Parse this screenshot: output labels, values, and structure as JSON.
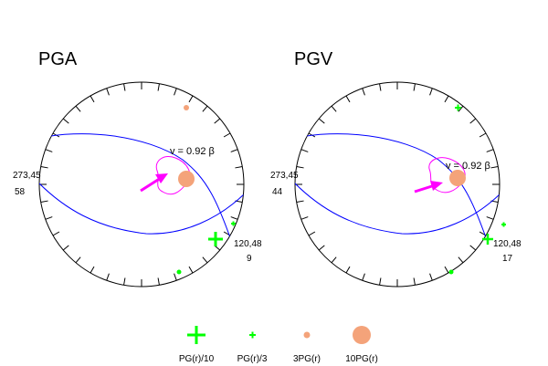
{
  "colors": {
    "circle": "#000000",
    "great_circle": "#0000ff",
    "contour": "#ff00ff",
    "arrow": "#ff00ff",
    "cross": "#00ff00",
    "dot": "#f4a37a"
  },
  "legend": [
    {
      "symbol": "big-cross",
      "label": "PG(r)/10"
    },
    {
      "symbol": "small-cross",
      "label": "PG(r)/3"
    },
    {
      "symbol": "small-dot",
      "label": "3PG(r)"
    },
    {
      "symbol": "big-dot",
      "label": "10PG(r)"
    }
  ],
  "panels": [
    {
      "title": "PGA",
      "left_label_top": "273,45",
      "left_label_bottom": "58",
      "right_label_top": "120,48",
      "right_label_bottom": "9",
      "velocity_label": "v = 0.92 β"
    },
    {
      "title": "PGV",
      "left_label_top": "273,45",
      "left_label_bottom": "44",
      "right_label_top": "120,48",
      "right_label_bottom": "17",
      "velocity_label": "v = 0.92 β"
    }
  ]
}
